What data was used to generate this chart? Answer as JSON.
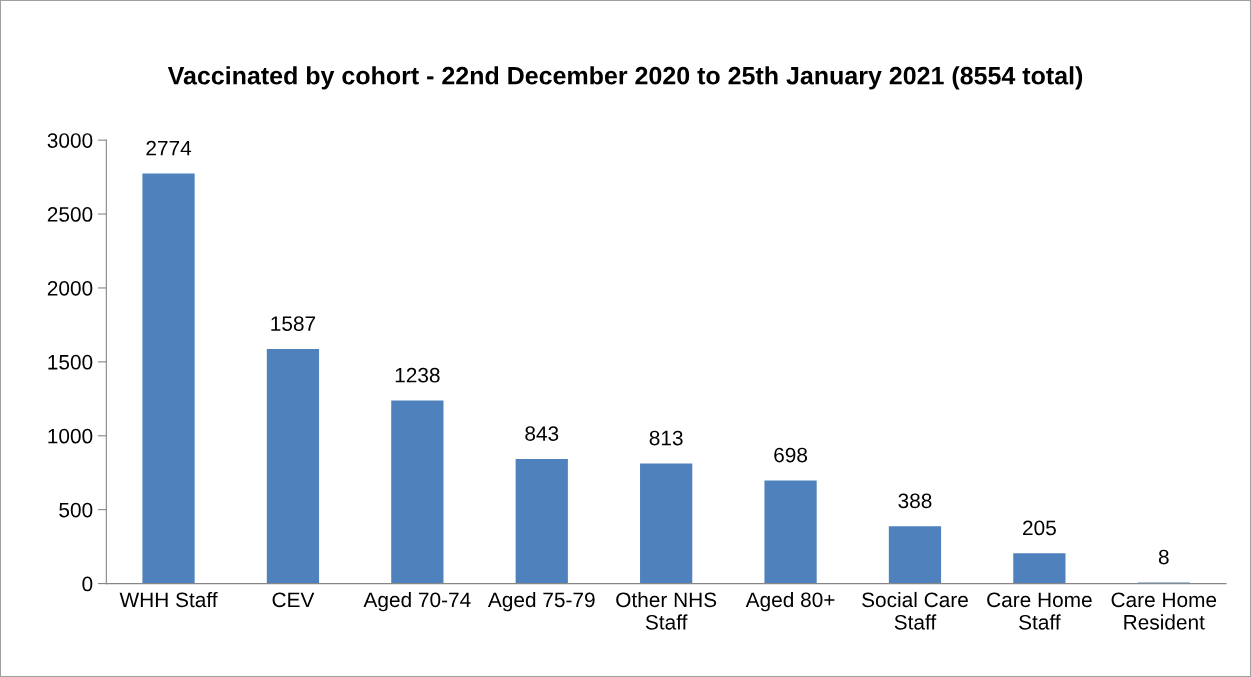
{
  "chart_data": {
    "type": "bar",
    "title": "Vaccinated by cohort - 22nd December 2020 to 25th January 2021 (8554 total)",
    "categories": [
      "WHH Staff",
      "CEV",
      "Aged 70-74",
      "Aged 75-79",
      "Other NHS Staff",
      "Aged 80+",
      "Social Care Staff",
      "Care Home Staff",
      "Care Home Resident"
    ],
    "values": [
      2774,
      1587,
      1238,
      843,
      813,
      698,
      388,
      205,
      8
    ],
    "color": "#4f81bd",
    "ylim": [
      0,
      3000
    ],
    "yticks": [
      0,
      500,
      1000,
      1500,
      2000,
      2500,
      3000
    ],
    "data_labels": true,
    "grid": false,
    "legend": false
  }
}
